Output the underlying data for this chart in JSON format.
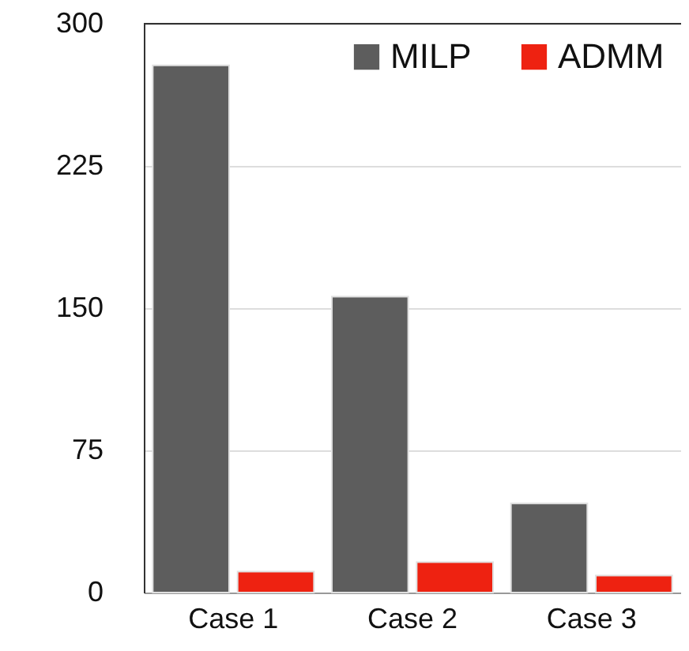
{
  "chart_data": {
    "type": "bar",
    "categories": [
      "Case 1",
      "Case 2",
      "Case 3"
    ],
    "series": [
      {
        "name": "MILP",
        "color": "#5d5d5d",
        "values": [
          278,
          156,
          47
        ]
      },
      {
        "name": "ADMM",
        "color": "#ee2211",
        "values": [
          11,
          16,
          9
        ]
      }
    ],
    "ylim": [
      0,
      300
    ],
    "yticks": [
      0,
      75,
      150,
      225,
      300
    ],
    "grid": "y",
    "legend": "top right"
  }
}
